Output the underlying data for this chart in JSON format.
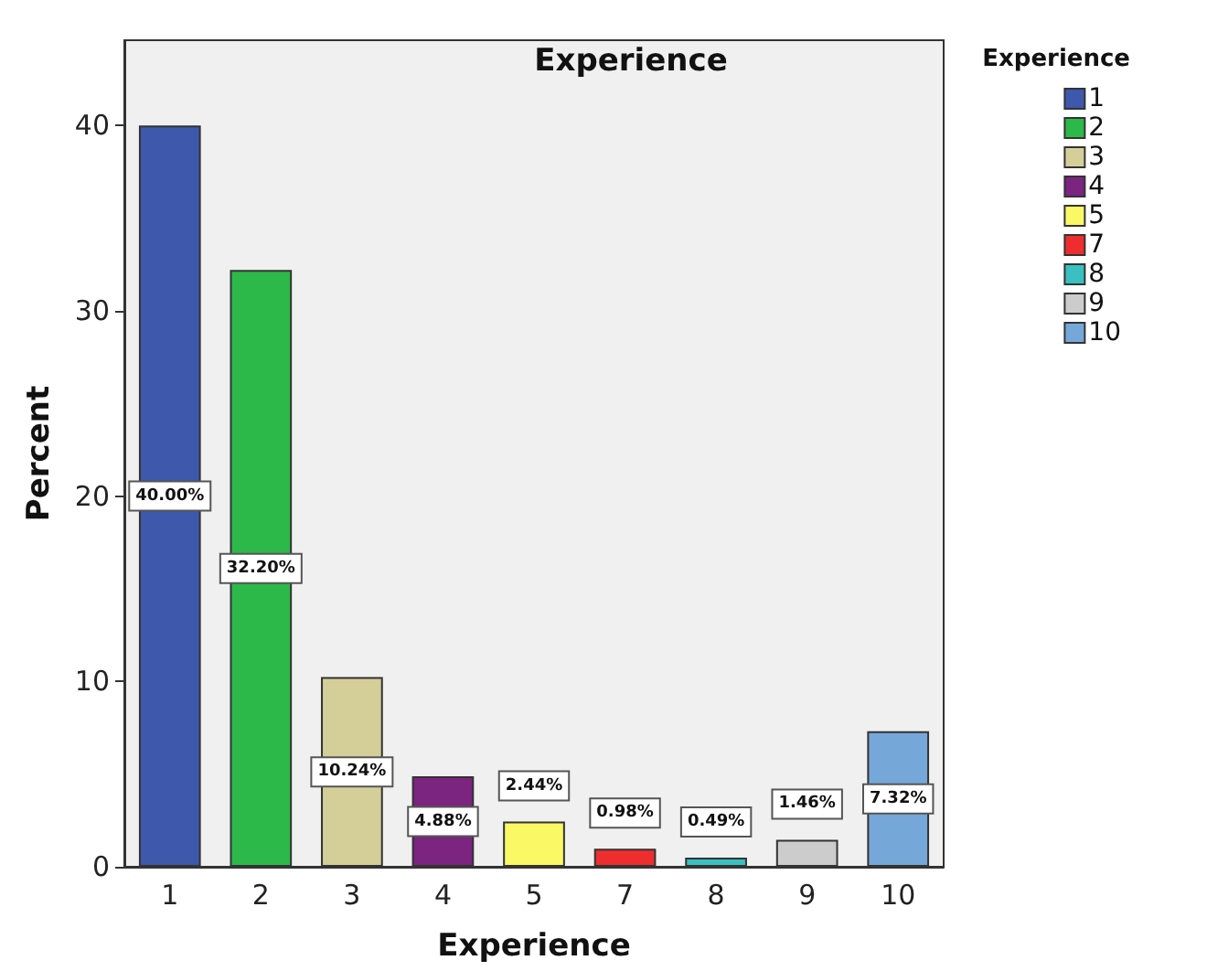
{
  "chart_data": {
    "type": "bar",
    "title": "Experience",
    "xlabel": "Experience",
    "ylabel": "Percent",
    "legend_title": "Experience",
    "categories": [
      "1",
      "2",
      "3",
      "4",
      "5",
      "7",
      "8",
      "9",
      "10"
    ],
    "series": [
      {
        "name": "1",
        "color": "#3e58ac",
        "values": [
          40.0,
          null,
          null,
          null,
          null,
          null,
          null,
          null,
          null
        ],
        "value_labels": [
          "40.00%",
          null,
          null,
          null,
          null,
          null,
          null,
          null,
          null
        ]
      },
      {
        "name": "2",
        "color": "#2db84a",
        "values": [
          null,
          32.2,
          null,
          null,
          null,
          null,
          null,
          null,
          null
        ],
        "value_labels": [
          null,
          "32.20%",
          null,
          null,
          null,
          null,
          null,
          null,
          null
        ]
      },
      {
        "name": "3",
        "color": "#d4cf98",
        "values": [
          null,
          null,
          10.24,
          null,
          null,
          null,
          null,
          null,
          null
        ],
        "value_labels": [
          null,
          null,
          "10.24%",
          null,
          null,
          null,
          null,
          null,
          null
        ]
      },
      {
        "name": "4",
        "color": "#7b2480",
        "values": [
          null,
          null,
          null,
          4.88,
          null,
          null,
          null,
          null,
          null
        ],
        "value_labels": [
          null,
          null,
          null,
          "4.88%",
          null,
          null,
          null,
          null,
          null
        ]
      },
      {
        "name": "5",
        "color": "#fbf866",
        "values": [
          null,
          null,
          null,
          null,
          2.44,
          null,
          null,
          null,
          null
        ],
        "value_labels": [
          null,
          null,
          null,
          null,
          "2.44%",
          null,
          null,
          null,
          null
        ]
      },
      {
        "name": "7",
        "color": "#ee2e2e",
        "values": [
          null,
          null,
          null,
          null,
          null,
          0.98,
          null,
          null,
          null
        ],
        "value_labels": [
          null,
          null,
          null,
          null,
          null,
          "0.98%",
          null,
          null,
          null
        ]
      },
      {
        "name": "8",
        "color": "#39c0c0",
        "values": [
          null,
          null,
          null,
          null,
          null,
          null,
          0.49,
          null,
          null
        ],
        "value_labels": [
          null,
          null,
          null,
          null,
          null,
          null,
          "0.49%",
          null,
          null
        ]
      },
      {
        "name": "9",
        "color": "#cccccc",
        "values": [
          null,
          null,
          null,
          null,
          null,
          null,
          null,
          1.46,
          null
        ],
        "value_labels": [
          null,
          null,
          null,
          null,
          null,
          null,
          null,
          "1.46%",
          null
        ]
      },
      {
        "name": "10",
        "color": "#75a7d9",
        "values": [
          null,
          null,
          null,
          null,
          null,
          null,
          null,
          null,
          7.32
        ],
        "value_labels": [
          null,
          null,
          null,
          null,
          null,
          null,
          null,
          null,
          "7.32%"
        ]
      }
    ],
    "ylim": [
      0,
      44.6
    ],
    "yticks": [
      0,
      10,
      20,
      30,
      40
    ],
    "grid": false,
    "legend": "top right"
  }
}
